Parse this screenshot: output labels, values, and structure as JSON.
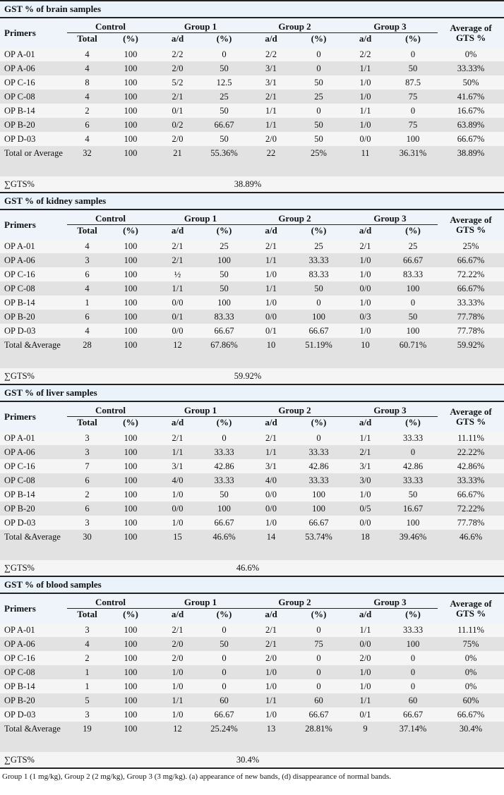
{
  "headers": {
    "primers": "Primers",
    "control": "Control",
    "group1": "Group 1",
    "group2": "Group 2",
    "group3": "Group 3",
    "average": "Average of GTS %",
    "total": "Total",
    "pct": "(%)",
    "ad": "a/d"
  },
  "sections": [
    {
      "title": "GST % of brain samples",
      "rows": [
        [
          "OP A-01",
          "4",
          "100",
          "2/2",
          "0",
          "2/2",
          "0",
          "2/2",
          "0",
          "0%"
        ],
        [
          "OP A-06",
          "4",
          "100",
          "2/0",
          "50",
          "3/1",
          "0",
          "1/1",
          "50",
          "33.33%"
        ],
        [
          "OP C-16",
          "8",
          "100",
          "5/2",
          "12.5",
          "3/1",
          "50",
          "1/0",
          "87.5",
          "50%"
        ],
        [
          "OP C-08",
          "4",
          "100",
          "2/1",
          "25",
          "2/1",
          "25",
          "1/0",
          "75",
          "41.67%"
        ],
        [
          "OP B-14",
          "2",
          "100",
          "0/1",
          "50",
          "1/1",
          "0",
          "1/1",
          "0",
          "16.67%"
        ],
        [
          "OP B-20",
          "6",
          "100",
          "0/2",
          "66.67",
          "1/1",
          "50",
          "1/0",
          "75",
          "63.89%"
        ],
        [
          "OP D-03",
          "4",
          "100",
          "2/0",
          "50",
          "2/0",
          "50",
          "0/0",
          "100",
          "66.67%"
        ]
      ],
      "total": [
        "Total or Average",
        "32",
        "100",
        "21",
        "55.36%",
        "22",
        "25%",
        "11",
        "36.31%",
        "38.89%"
      ],
      "sum_label": "∑GTS%",
      "sum_value": "38.89%"
    },
    {
      "title": "GST % of kidney samples",
      "rows": [
        [
          "OP A-01",
          "4",
          "100",
          "2/1",
          "25",
          "2/1",
          "25",
          "2/1",
          "25",
          "25%"
        ],
        [
          "OP A-06",
          "3",
          "100",
          "2/1",
          "100",
          "1/1",
          "33.33",
          "1/0",
          "66.67",
          "66.67%"
        ],
        [
          "OP C-16",
          "6",
          "100",
          "½",
          "50",
          "1/0",
          "83.33",
          "1/0",
          "83.33",
          "72.22%"
        ],
        [
          "OP C-08",
          "4",
          "100",
          "1/1",
          "50",
          "1/1",
          "50",
          "0/0",
          "100",
          "66.67%"
        ],
        [
          "OP B-14",
          "1",
          "100",
          "0/0",
          "100",
          "1/0",
          "0",
          "1/0",
          "0",
          "33.33%"
        ],
        [
          "OP B-20",
          "6",
          "100",
          "0/1",
          "83.33",
          "0/0",
          "100",
          "0/3",
          "50",
          "77.78%"
        ],
        [
          "OP D-03",
          "4",
          "100",
          "0/0",
          "66.67",
          "0/1",
          "66.67",
          "1/0",
          "100",
          "77.78%"
        ]
      ],
      "total": [
        "Total &Average",
        "28",
        "100",
        "12",
        "67.86%",
        "10",
        "51.19%",
        "10",
        "60.71%",
        "59.92%"
      ],
      "sum_label": "∑GTS%",
      "sum_value": "59.92%"
    },
    {
      "title": "GST % of liver samples",
      "rows": [
        [
          "OP A-01",
          "3",
          "100",
          "2/1",
          "0",
          "2/1",
          "0",
          "1/1",
          "33.33",
          "11.11%"
        ],
        [
          "OP A-06",
          "3",
          "100",
          "1/1",
          "33.33",
          "1/1",
          "33.33",
          "2/1",
          "0",
          "22.22%"
        ],
        [
          "OP C-16",
          "7",
          "100",
          "3/1",
          "42.86",
          "3/1",
          "42.86",
          "3/1",
          "42.86",
          "42.86%"
        ],
        [
          "OP C-08",
          "6",
          "100",
          "4/0",
          "33.33",
          "4/0",
          "33.33",
          "3/0",
          "33.33",
          "33.33%"
        ],
        [
          "OP B-14",
          "2",
          "100",
          "1/0",
          "50",
          "0/0",
          "100",
          "1/0",
          "50",
          "66.67%"
        ],
        [
          "OP B-20",
          "6",
          "100",
          "0/0",
          "100",
          "0/0",
          "100",
          "0/5",
          "16.67",
          "72.22%"
        ],
        [
          "OP D-03",
          "3",
          "100",
          "1/0",
          "66.67",
          "1/0",
          "66.67",
          "0/0",
          "100",
          "77.78%"
        ]
      ],
      "total": [
        "Total &Average",
        "30",
        "100",
        "15",
        "46.6%",
        "14",
        "53.74%",
        "18",
        "39.46%",
        "46.6%"
      ],
      "sum_label": "∑GTS%",
      "sum_value": "46.6%"
    },
    {
      "title": "GST % of blood samples",
      "rows": [
        [
          "OP A-01",
          "3",
          "100",
          "2/1",
          "0",
          "2/1",
          "0",
          "1/1",
          "33.33",
          "11.11%"
        ],
        [
          "OP A-06",
          "4",
          "100",
          "2/0",
          "50",
          "2/1",
          "75",
          "0/0",
          "100",
          "75%"
        ],
        [
          "OP C-16",
          "2",
          "100",
          "2/0",
          "0",
          "2/0",
          "0",
          "2/0",
          "0",
          "0%"
        ],
        [
          "OP C-08",
          "1",
          "100",
          "1/0",
          "0",
          "1/0",
          "0",
          "1/0",
          "0",
          "0%"
        ],
        [
          "OP B-14",
          "1",
          "100",
          "1/0",
          "0",
          "1/0",
          "0",
          "1/0",
          "0",
          "0%"
        ],
        [
          "OP B-20",
          "5",
          "100",
          "1/1",
          "60",
          "1/1",
          "60",
          "1/1",
          "60",
          "60%"
        ],
        [
          "OP D-03",
          "3",
          "100",
          "1/0",
          "66.67",
          "1/0",
          "66.67",
          "0/1",
          "66.67",
          "66.67%"
        ]
      ],
      "total": [
        "Total &Average",
        "19",
        "100",
        "12",
        "25.24%",
        "13",
        "28.81%",
        "9",
        "37.14%",
        "30.4%"
      ],
      "sum_label": "∑GTS%",
      "sum_value": "30.4%"
    }
  ],
  "footnote": "Group 1 (1 mg/kg), Group 2 (2 mg/kg), Group 3 (3 mg/kg). (a) appearance of new bands, (d) disappearance of normal bands."
}
